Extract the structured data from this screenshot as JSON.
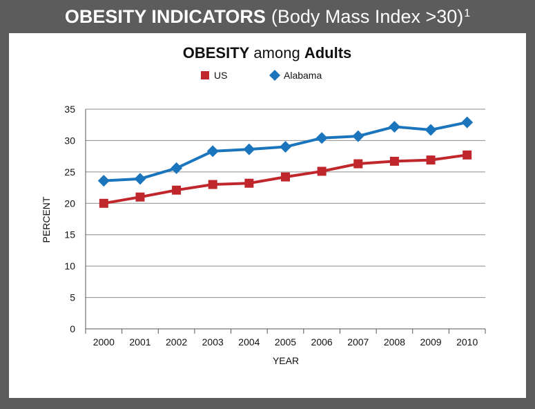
{
  "banner": {
    "title_strong": "OBESITY INDICATORS",
    "title_light": "(Body Mass Index >30)",
    "footnote_mark": "1"
  },
  "chart_data": {
    "type": "line",
    "title_parts": [
      {
        "text": "OBESITY",
        "bold": true
      },
      {
        "text": " among ",
        "bold": false
      },
      {
        "text": "Adults",
        "bold": true
      }
    ],
    "categories": [
      "2000",
      "2001",
      "2002",
      "2003",
      "2004",
      "2005",
      "2006",
      "2007",
      "2008",
      "2009",
      "2010"
    ],
    "series": [
      {
        "name": "US",
        "color": "#c0272d",
        "marker": "square",
        "values": [
          20.0,
          21.0,
          22.1,
          23.0,
          23.2,
          24.2,
          25.1,
          26.3,
          26.7,
          26.9,
          27.7
        ]
      },
      {
        "name": "Alabama",
        "color": "#1b75bc",
        "marker": "diamond",
        "values": [
          23.6,
          23.9,
          25.6,
          28.3,
          28.6,
          29.0,
          30.4,
          30.7,
          32.2,
          31.7,
          32.9
        ]
      }
    ],
    "xlabel": "YEAR",
    "ylabel": "PERCENT",
    "ylim": [
      0,
      35
    ],
    "yticks": [
      0,
      5,
      10,
      15,
      20,
      25,
      30,
      35
    ],
    "grid": true,
    "legend_position": "top-center"
  }
}
